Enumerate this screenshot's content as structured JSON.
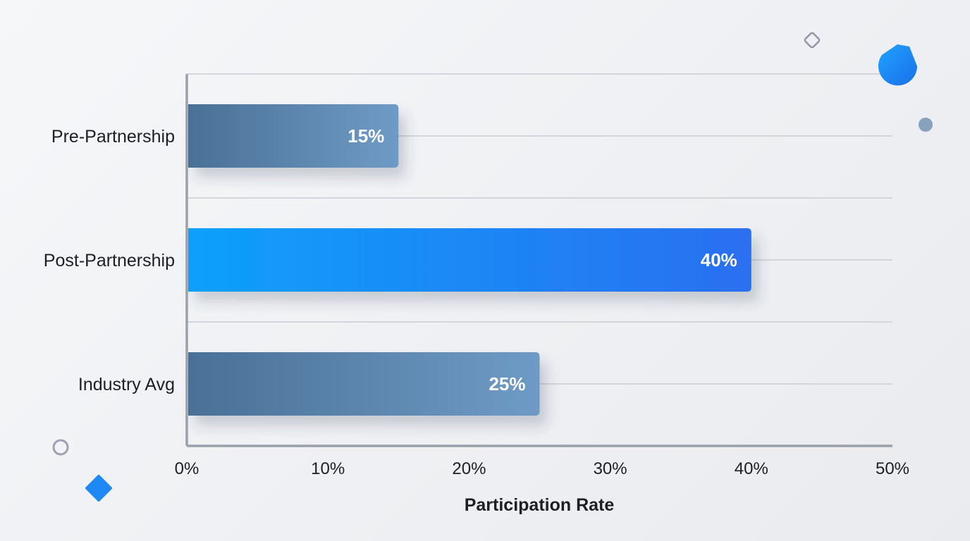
{
  "chart_data": {
    "type": "bar",
    "orientation": "horizontal",
    "categories": [
      "Pre-Partnership",
      "Post-Partnership",
      "Industry Avg"
    ],
    "values": [
      15,
      40,
      25
    ],
    "value_labels": [
      "15%",
      "40%",
      "25%"
    ],
    "highlight_index": 1,
    "xlabel": "Participation Rate",
    "ylabel": "",
    "xlim": [
      0,
      50
    ],
    "x_ticks": [
      0,
      10,
      20,
      30,
      40,
      50
    ],
    "x_tick_labels": [
      "0%",
      "10%",
      "20%",
      "30%",
      "40%",
      "50%"
    ],
    "grid": true,
    "colors": {
      "bar_default_start": "#4a7096",
      "bar_default_end": "#6e9bc5",
      "bar_highlight_start": "#0ea0fb",
      "bar_highlight_end": "#2a6ff0",
      "axis": "#9aa1ab",
      "grid": "#c9cdd3"
    }
  },
  "decorations": [
    {
      "name": "outline-diamond-icon",
      "color": "#8f99a6"
    },
    {
      "name": "blue-drop-icon",
      "color": "#1e88f5"
    },
    {
      "name": "gray-dot-icon",
      "color": "#8aa1bb"
    },
    {
      "name": "outline-circle-icon",
      "color": "#9aa3ae"
    },
    {
      "name": "blue-diamond-icon",
      "color": "#1e88f5"
    }
  ]
}
